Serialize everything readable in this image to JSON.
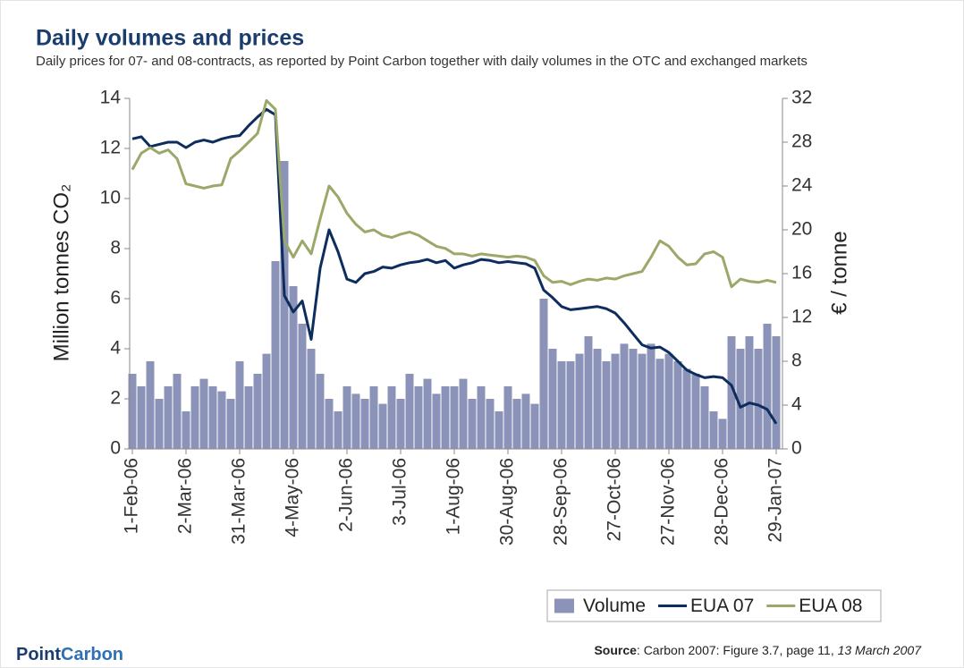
{
  "chart_data": {
    "type": "combo",
    "title": "Daily volumes and prices",
    "subtitle": "Daily prices for 07- and 08-contracts, as reported by Point Carbon together with daily volumes in the OTC and exchanged markets",
    "ylabel": "Million tonnes CO₂",
    "y2label": "€ / tonne",
    "categories": [
      "1-Feb-06",
      null,
      null,
      null,
      null,
      null,
      "2-Mar-06",
      null,
      null,
      null,
      null,
      null,
      "31-Mar-06",
      null,
      null,
      null,
      null,
      null,
      "4-May-06",
      null,
      null,
      null,
      null,
      null,
      "2-Jun-06",
      null,
      null,
      null,
      null,
      null,
      "3-Jul-06",
      null,
      null,
      null,
      null,
      null,
      "1-Aug-06",
      null,
      null,
      null,
      null,
      null,
      "30-Aug-06",
      null,
      null,
      null,
      null,
      null,
      "28-Sep-06",
      null,
      null,
      null,
      null,
      null,
      "27-Oct-06",
      null,
      null,
      null,
      null,
      null,
      "27-Nov-06",
      null,
      null,
      null,
      null,
      null,
      "28-Dec-06",
      null,
      null,
      null,
      null,
      null,
      "29-Jan-07"
    ],
    "series": [
      {
        "name": "Volume",
        "type": "bar",
        "color": "#8c93b8",
        "values": [
          3.0,
          2.5,
          3.5,
          2.0,
          2.5,
          3.0,
          1.5,
          2.5,
          2.8,
          2.5,
          2.3,
          2.0,
          3.5,
          2.5,
          3.0,
          3.8,
          7.5,
          11.5,
          6.5,
          5.0,
          4.0,
          3.0,
          2.0,
          1.5,
          2.5,
          2.2,
          2.0,
          2.5,
          1.8,
          2.5,
          2.0,
          3.0,
          2.5,
          2.8,
          2.2,
          2.5,
          2.5,
          2.8,
          2.0,
          2.5,
          2.0,
          1.5,
          2.5,
          2.0,
          2.2,
          1.8,
          6.0,
          4.0,
          3.5,
          3.5,
          3.8,
          4.5,
          4.0,
          3.5,
          3.8,
          4.2,
          4.0,
          3.8,
          4.2,
          3.6,
          3.8,
          3.5,
          3.2,
          3.0,
          2.5,
          1.5,
          1.2,
          4.5,
          4.0,
          4.5,
          4.0,
          5.0,
          4.5
        ]
      },
      {
        "name": "EUA 07",
        "type": "line",
        "axis": "y2",
        "color": "#0d2d5e",
        "values": [
          28.3,
          28.5,
          27.6,
          27.8,
          28.0,
          28.0,
          27.5,
          28.0,
          28.2,
          28.0,
          28.3,
          28.5,
          28.6,
          29.5,
          30.3,
          31.0,
          30.5,
          14.0,
          12.5,
          13.5,
          10.0,
          16.5,
          20.0,
          18.0,
          15.5,
          15.2,
          16.0,
          16.2,
          16.6,
          16.5,
          16.8,
          17.0,
          17.1,
          17.3,
          17.0,
          17.2,
          16.5,
          16.8,
          17.0,
          17.3,
          17.2,
          17.0,
          17.1,
          17.0,
          16.9,
          16.5,
          14.5,
          13.8,
          13.0,
          12.7,
          12.8,
          12.9,
          13.0,
          12.8,
          12.4,
          11.5,
          10.5,
          9.5,
          9.2,
          9.3,
          8.8,
          8.0,
          7.2,
          6.8,
          6.5,
          6.6,
          6.5,
          5.8,
          3.8,
          4.2,
          4.0,
          3.6,
          2.3
        ]
      },
      {
        "name": "EUA 08",
        "type": "line",
        "axis": "y2",
        "color": "#9aa86a",
        "values": [
          25.5,
          27.0,
          27.5,
          27.0,
          27.3,
          26.5,
          24.2,
          24.0,
          23.8,
          24.0,
          24.1,
          26.5,
          27.2,
          28.0,
          28.8,
          31.8,
          31.0,
          19.0,
          17.5,
          19.0,
          17.8,
          21.0,
          24.0,
          23.0,
          21.5,
          20.5,
          19.8,
          20.0,
          19.5,
          19.3,
          19.6,
          19.8,
          19.5,
          19.0,
          18.5,
          18.3,
          17.8,
          17.8,
          17.6,
          17.8,
          17.7,
          17.6,
          17.5,
          17.6,
          17.5,
          17.2,
          15.8,
          15.2,
          15.3,
          15.0,
          15.3,
          15.5,
          15.4,
          15.6,
          15.5,
          15.8,
          16.0,
          16.2,
          17.5,
          19.0,
          18.5,
          17.5,
          16.8,
          16.9,
          17.8,
          18.0,
          17.5,
          14.8,
          15.5,
          15.3,
          15.2,
          15.4,
          15.2
        ]
      }
    ],
    "ylim": [
      0,
      14
    ],
    "yticks": [
      0,
      2,
      4,
      6,
      8,
      10,
      12,
      14
    ],
    "y2lim": [
      0,
      32
    ],
    "y2ticks": [
      0,
      4,
      8,
      12,
      16,
      20,
      24,
      28,
      32
    ],
    "legend": "bottom-right"
  },
  "footer": {
    "logo": [
      "Point",
      "Carbon"
    ],
    "source_label": "Source",
    "source_text": ": Carbon 2007: Figure 3.7, page 11,",
    "source_date": "13 March 2007"
  }
}
